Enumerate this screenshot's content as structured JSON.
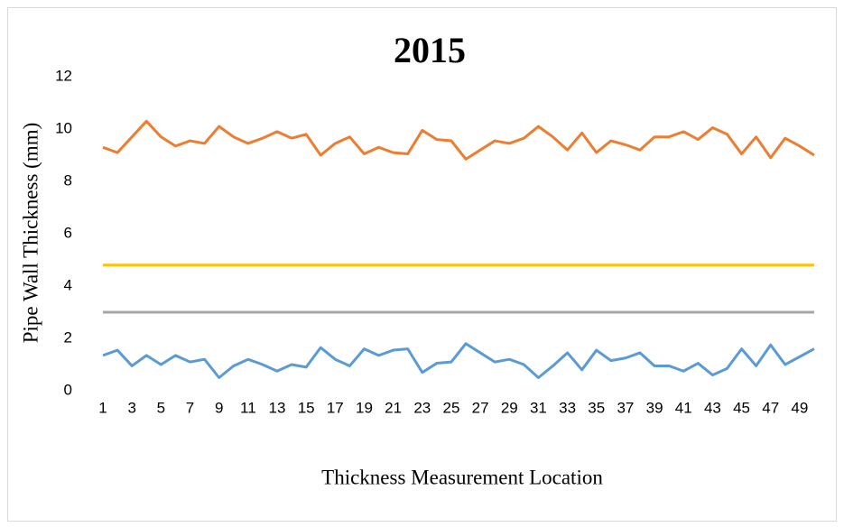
{
  "chart_data": {
    "type": "line",
    "title": "2015",
    "y_label": "Pipe Wall Thickness (mm)",
    "x_label": "Thickness  Measurement Location",
    "categories": [
      "1",
      null,
      "3",
      null,
      "5",
      null,
      "7",
      null,
      "9",
      null,
      "11",
      null,
      "13",
      null,
      "15",
      null,
      "17",
      null,
      "19",
      null,
      "21",
      null,
      "23",
      null,
      "25",
      null,
      "27",
      null,
      "29",
      null,
      "31",
      null,
      "33",
      null,
      "35",
      null,
      "37",
      null,
      "39",
      null,
      "41",
      null,
      "43",
      null,
      "45",
      null,
      "47",
      null,
      "49",
      null
    ],
    "series": [
      {
        "color": "#ed7d31",
        "values": [
          9.3,
          9.1,
          9.7,
          10.3,
          9.7,
          9.35,
          9.55,
          9.45,
          10.1,
          9.7,
          9.45,
          9.65,
          9.9,
          9.65,
          9.8,
          9.0,
          9.45,
          9.7,
          9.05,
          9.3,
          9.1,
          9.05,
          9.95,
          9.6,
          9.55,
          8.85,
          9.2,
          9.55,
          9.45,
          9.65,
          10.1,
          9.7,
          9.2,
          9.85,
          9.1,
          9.55,
          9.4,
          9.2,
          9.7,
          9.7,
          9.9,
          9.6,
          10.05,
          9.8,
          9.05,
          9.7,
          8.9,
          9.65,
          9.35,
          9.0
        ]
      },
      {
        "color": "#ffc000",
        "values": [
          4.8,
          4.8,
          4.8,
          4.8,
          4.8,
          4.8,
          4.8,
          4.8,
          4.8,
          4.8,
          4.8,
          4.8,
          4.8,
          4.8,
          4.8,
          4.8,
          4.8,
          4.8,
          4.8,
          4.8,
          4.8,
          4.8,
          4.8,
          4.8,
          4.8,
          4.8,
          4.8,
          4.8,
          4.8,
          4.8,
          4.8,
          4.8,
          4.8,
          4.8,
          4.8,
          4.8,
          4.8,
          4.8,
          4.8,
          4.8,
          4.8,
          4.8,
          4.8,
          4.8,
          4.8,
          4.8,
          4.8,
          4.8,
          4.8,
          4.8
        ]
      },
      {
        "color": "#a5a5a5",
        "values": [
          3.0,
          3.0,
          3.0,
          3.0,
          3.0,
          3.0,
          3.0,
          3.0,
          3.0,
          3.0,
          3.0,
          3.0,
          3.0,
          3.0,
          3.0,
          3.0,
          3.0,
          3.0,
          3.0,
          3.0,
          3.0,
          3.0,
          3.0,
          3.0,
          3.0,
          3.0,
          3.0,
          3.0,
          3.0,
          3.0,
          3.0,
          3.0,
          3.0,
          3.0,
          3.0,
          3.0,
          3.0,
          3.0,
          3.0,
          3.0,
          3.0,
          3.0,
          3.0,
          3.0,
          3.0,
          3.0,
          3.0,
          3.0,
          3.0,
          3.0
        ]
      },
      {
        "color": "#5b9bd5",
        "values": [
          1.35,
          1.55,
          0.95,
          1.35,
          1.0,
          1.35,
          1.1,
          1.2,
          0.5,
          0.95,
          1.2,
          1.0,
          0.75,
          1.0,
          0.9,
          1.65,
          1.2,
          0.95,
          1.6,
          1.35,
          1.55,
          1.6,
          0.7,
          1.05,
          1.1,
          1.8,
          1.45,
          1.1,
          1.2,
          1.0,
          0.5,
          0.95,
          1.45,
          0.8,
          1.55,
          1.15,
          1.25,
          1.45,
          0.95,
          0.95,
          0.75,
          1.05,
          0.6,
          0.85,
          1.6,
          0.95,
          1.75,
          1.0,
          1.3,
          1.6
        ]
      }
    ],
    "ylim": [
      0,
      12
    ],
    "yticks": [
      0,
      2,
      4,
      6,
      8,
      10,
      12
    ],
    "grid": false
  }
}
